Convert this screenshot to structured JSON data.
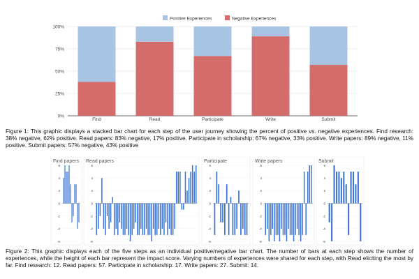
{
  "chart_data": [
    {
      "type": "bar",
      "stacked": true,
      "categories": [
        "Find",
        "Read",
        "Participate",
        "Write",
        "Submit"
      ],
      "series": [
        {
          "name": "Negative Experiences",
          "values": [
            38,
            83,
            67,
            89,
            57
          ],
          "color": "#d46c6b"
        },
        {
          "name": "Positive Experiences",
          "values": [
            62,
            17,
            33,
            11,
            43
          ],
          "color": "#a7c4e3"
        }
      ],
      "ylim": [
        0,
        100
      ],
      "yticks": [
        "0%",
        "25%",
        "50%",
        "75%",
        "100%"
      ],
      "legend": "top",
      "grid": true
    },
    {
      "type": "bar",
      "panels": [
        {
          "title": "Find papers",
          "values": [
            4,
            6,
            5,
            5,
            6,
            3,
            -3,
            -2,
            3,
            3,
            -4,
            -3
          ]
        },
        {
          "title": "Read papers",
          "values": [
            -5,
            -4,
            -2,
            4,
            -4,
            -5,
            -2,
            -4,
            -3,
            1,
            -5,
            -4,
            -5,
            -3,
            -4,
            -5,
            -5,
            -4,
            -5,
            -6,
            -5,
            -4,
            -3,
            -5,
            -5,
            -4,
            -5,
            -5,
            -4,
            -5,
            -5,
            -6,
            -4,
            -5,
            -5,
            -4,
            -5,
            -4,
            -5,
            -3,
            -5,
            -4,
            -5,
            -5,
            -4,
            5,
            5,
            5,
            -1,
            -1,
            5,
            2,
            4,
            5,
            6,
            5,
            6
          ]
        },
        {
          "title": "Participate",
          "values": [
            -5,
            5,
            3,
            -3,
            -3,
            -5,
            3,
            -5,
            1,
            -5,
            -5,
            -4,
            2,
            -5,
            -4,
            -5,
            -5
          ]
        },
        {
          "title": "Write papers",
          "values": [
            -5,
            -4,
            -6,
            -5,
            -4,
            -6,
            -5,
            -5,
            -6,
            -4,
            -5,
            -5,
            -6,
            -4,
            -5,
            -5,
            -6,
            -5,
            -4,
            -5,
            -6,
            -5,
            5,
            -5,
            5,
            6,
            6
          ]
        },
        {
          "title": "Submit",
          "values": [
            -3,
            -6,
            6,
            5,
            5,
            4,
            5,
            3,
            -5,
            5,
            5,
            3,
            5,
            -6
          ]
        }
      ],
      "ylim": [
        -6,
        6
      ],
      "yticks": [
        "6",
        "4",
        "2",
        "0",
        "-2",
        "-4",
        "-6"
      ],
      "color": "#3b73d4"
    }
  ],
  "captions": {
    "fig1": "Figure 1: This graphic displays a stacked bar chart for each step of the user journey showing the percent of positive vs. negative experiences. Find research: 38% negative, 62% positive. Read papers: 83% negative, 17% positive. Participate in scholarship: 67% negative, 33% positive. Write papers: 89% negative, 11% positive. Submit papers: 57% negative, 43% positive",
    "fig2": "Figure 2: This graphic displays each of the five steps as an individual positive/negative bar chart. The number of bars at each step shows the number of experiences, while the height of each bar represent the impact score. Varying numbers of experiences were shared for each step, with Read eliciting the most by far. Find research: 12. Read papers: 57. Participate in scholarship: 17. Write papers: 27. Submit: 14."
  }
}
